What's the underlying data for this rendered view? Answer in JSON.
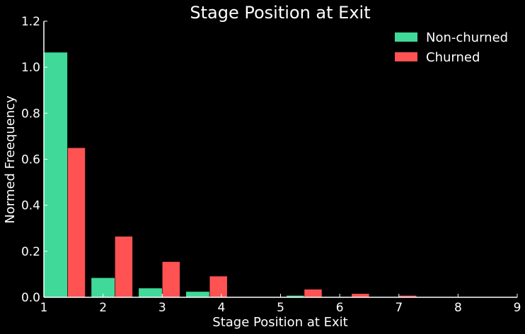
{
  "chart_data": {
    "type": "bar",
    "title": "Stage Position at Exit",
    "xlabel": "Stage Position at Exit",
    "ylabel": "Normed Freequency",
    "xlim": [
      1,
      9
    ],
    "ylim": [
      0,
      1.2
    ],
    "xticks": [
      "1",
      "2",
      "3",
      "4",
      "5",
      "6",
      "7",
      "8",
      "9"
    ],
    "yticks": [
      "0.0",
      "0.2",
      "0.4",
      "0.6",
      "0.8",
      "1.0",
      "1.2"
    ],
    "grid": false,
    "legend_position": "top-right",
    "background": "#000000",
    "series": [
      {
        "name": "Non-churned",
        "color": "#40d99a",
        "bins": [
          {
            "x0": 1.0,
            "x1": 1.4,
            "value": 1.065
          },
          {
            "x0": 1.8,
            "x1": 2.2,
            "value": 0.085
          },
          {
            "x0": 2.6,
            "x1": 3.0,
            "value": 0.04
          },
          {
            "x0": 3.4,
            "x1": 3.8,
            "value": 0.025
          },
          {
            "x0": 5.1,
            "x1": 5.4,
            "value": 0.008
          }
        ]
      },
      {
        "name": "Churned",
        "color": "#ff5252",
        "bins": [
          {
            "x0": 1.4,
            "x1": 1.7,
            "value": 0.65
          },
          {
            "x0": 2.2,
            "x1": 2.5,
            "value": 0.265
          },
          {
            "x0": 3.0,
            "x1": 3.3,
            "value": 0.155
          },
          {
            "x0": 3.8,
            "x1": 4.1,
            "value": 0.092
          },
          {
            "x0": 5.4,
            "x1": 5.7,
            "value": 0.035
          },
          {
            "x0": 6.2,
            "x1": 6.5,
            "value": 0.016
          },
          {
            "x0": 7.0,
            "x1": 7.3,
            "value": 0.008
          }
        ]
      }
    ]
  }
}
